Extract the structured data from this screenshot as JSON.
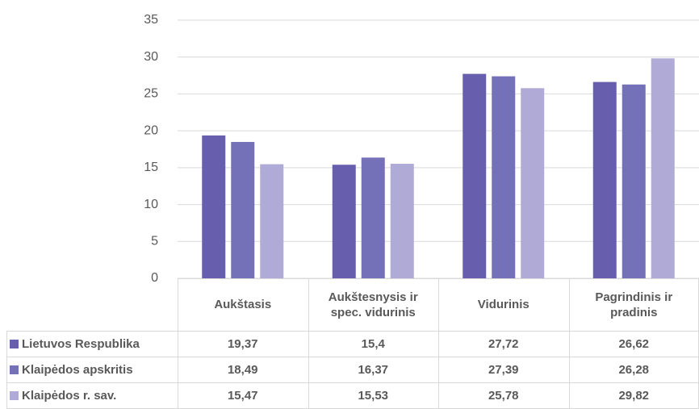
{
  "chart_data": {
    "type": "bar",
    "categories": [
      "Aukštasis",
      "Aukštesnysis ir spec. vidurinis",
      "Vidurinis",
      "Pagrindinis ir pradinis"
    ],
    "series": [
      {
        "name": "Lietuvos Respublika",
        "color": "#675fad",
        "values": [
          19.37,
          15.4,
          27.72,
          26.62
        ],
        "value_labels": [
          "19,37",
          "15,4",
          "27,72",
          "26,62"
        ]
      },
      {
        "name": "Klaipėdos apskritis",
        "color": "#7571b9",
        "values": [
          18.49,
          16.37,
          27.39,
          26.28
        ],
        "value_labels": [
          "18,49",
          "16,37",
          "27,39",
          "26,28"
        ]
      },
      {
        "name": "Klaipėdos r. sav.",
        "color": "#b0aad6",
        "values": [
          15.47,
          15.53,
          25.78,
          29.82
        ],
        "value_labels": [
          "15,47",
          "15,53",
          "25,78",
          "29,82"
        ]
      }
    ],
    "ylim": [
      0,
      35
    ],
    "yticks": [
      0,
      5,
      10,
      15,
      20,
      25,
      30,
      35
    ],
    "grid": true
  }
}
